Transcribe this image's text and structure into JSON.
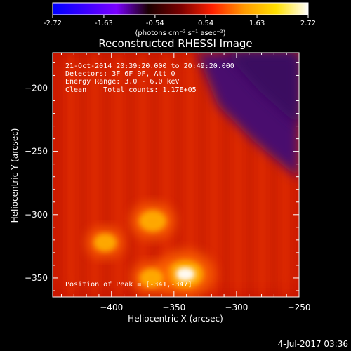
{
  "colorbar": {
    "ticks": [
      "-2.72",
      "-1.63",
      "-0.54",
      "0.54",
      "1.63",
      "2.72"
    ],
    "unit_label": "(photons cm⁻² s⁻¹ asec⁻²)",
    "range": [
      -2.72,
      2.72
    ],
    "colors": [
      "#0000ff",
      "#3a00ff",
      "#7a00ff",
      "#1a0000",
      "#7a0000",
      "#ff2000",
      "#ff9a00",
      "#ffe000",
      "#ffffff"
    ]
  },
  "info": {
    "line1": "21-Oct-2014 20:39:20.000 to 20:49:20.000",
    "line2": "Detectors: 3F 6F 9F, Att 0",
    "line3": "Energy Range: 3.0 - 6.0 keV",
    "line4": "Clean    Total counts: 1.17E+05",
    "peak": "Position of Peak = [-341,-347]"
  },
  "footer": {
    "date": "4-Jul-2017 03:36"
  },
  "chart_data": {
    "type": "heatmap",
    "title": "Reconstructed RHESSI Image",
    "xlabel": "Heliocentric X (arcsec)",
    "ylabel": "Heliocentric Y (arcsec)",
    "xlim": [
      -447,
      -250
    ],
    "ylim": [
      -365,
      -172
    ],
    "xticks": [
      -400,
      -350,
      -300,
      -250
    ],
    "yticks": [
      -200,
      -250,
      -300,
      -350
    ],
    "xtick_labels": [
      "−400",
      "−350",
      "−300",
      "−250"
    ],
    "ytick_labels": [
      "−200",
      "−250",
      "−300",
      "−350"
    ],
    "sources": [
      {
        "x": -341,
        "y": -347,
        "intensity": 2.72
      },
      {
        "x": -367,
        "y": -305,
        "intensity": 1.9
      },
      {
        "x": -405,
        "y": -322,
        "intensity": 1.5
      },
      {
        "x": -368,
        "y": -350,
        "intensity": 1.6
      }
    ],
    "peak": [
      -341,
      -347
    ],
    "colorbar_range": [
      -2.72,
      2.72
    ]
  }
}
